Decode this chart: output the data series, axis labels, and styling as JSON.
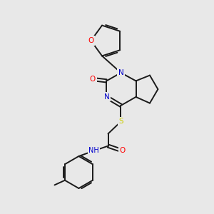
{
  "background_color": "#e8e8e8",
  "bond_color": "#1a1a1a",
  "atom_colors": {
    "O": "#ff0000",
    "N": "#0000cc",
    "S": "#cccc00",
    "H": "#4a8a8a",
    "C": "#1a1a1a"
  },
  "figsize": [
    3.0,
    3.0
  ],
  "dpi": 100,
  "lw": 1.4,
  "fontsize": 7.5
}
